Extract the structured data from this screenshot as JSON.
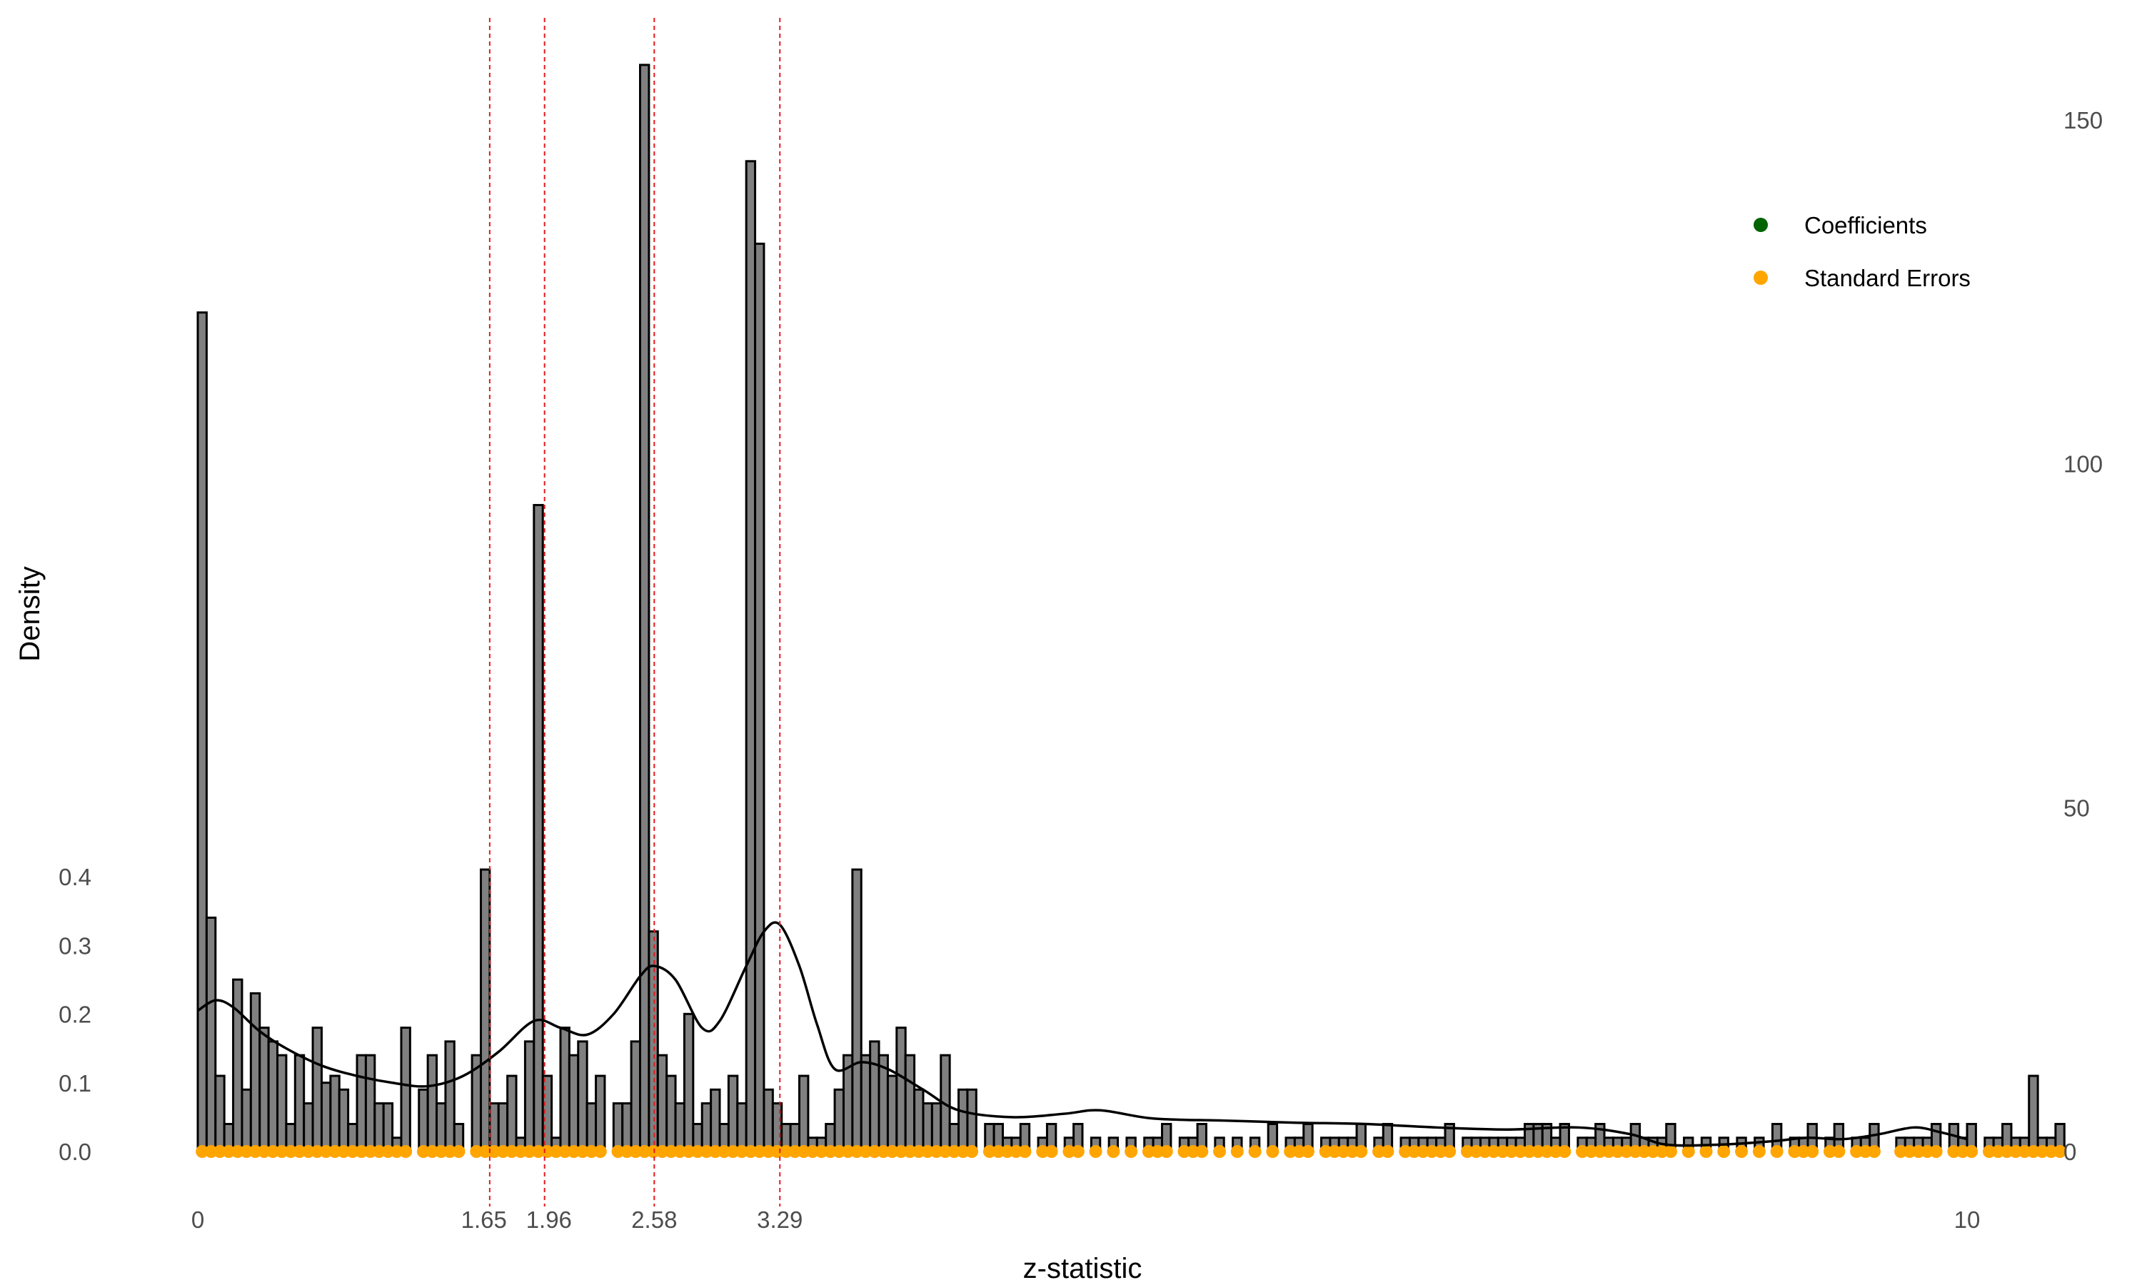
{
  "chart_data": {
    "type": "histogram",
    "xlabel": "z-statistic",
    "ylabel": "Density",
    "xlim": [
      0,
      10
    ],
    "ylim_left": [
      0,
      0.4
    ],
    "ylim_right": [
      0,
      150
    ],
    "x_ticks": [
      {
        "value": 0,
        "label": "0"
      },
      {
        "value": 1.65,
        "label": "1.65"
      },
      {
        "value": 1.96,
        "label": "1.96"
      },
      {
        "value": 2.58,
        "label": "2.58"
      },
      {
        "value": 3.29,
        "label": "3.29"
      },
      {
        "value": 10,
        "label": "10"
      }
    ],
    "y_left_ticks": [
      {
        "value": 0,
        "label": "0.0"
      },
      {
        "value": 0.1,
        "label": "0.1"
      },
      {
        "value": 0.2,
        "label": "0.2"
      },
      {
        "value": 0.3,
        "label": "0.3"
      },
      {
        "value": 0.4,
        "label": "0.4"
      }
    ],
    "y_right_ticks": [
      {
        "value": 0,
        "label": "0"
      },
      {
        "value": 50,
        "label": "50"
      },
      {
        "value": 100,
        "label": "100"
      },
      {
        "value": 150,
        "label": "150"
      }
    ],
    "critical_values": [
      1.65,
      1.96,
      2.58,
      3.29
    ],
    "bin_width": 0.05,
    "counts": [
      122,
      34,
      11,
      4,
      25,
      9,
      23,
      18,
      16,
      14,
      4,
      14,
      7,
      18,
      10,
      11,
      9,
      4,
      14,
      14,
      7,
      7,
      2,
      18,
      0,
      9,
      14,
      7,
      16,
      4,
      0,
      14,
      41,
      7,
      7,
      11,
      2,
      16,
      94,
      11,
      2,
      18,
      14,
      16,
      7,
      11,
      0,
      7,
      7,
      16,
      158,
      32,
      14,
      11,
      7,
      20,
      4,
      7,
      9,
      4,
      11,
      7,
      144,
      132,
      9,
      7,
      4,
      4,
      11,
      2,
      2,
      4,
      9,
      14,
      41,
      14,
      16,
      14,
      11,
      18,
      14,
      9,
      7,
      7,
      14,
      4,
      9,
      9,
      0,
      4,
      4,
      2,
      2,
      4,
      0,
      2,
      4,
      0,
      2,
      4,
      0,
      2,
      0,
      2,
      0,
      2,
      0,
      2,
      2,
      4,
      0,
      2,
      2,
      4,
      0,
      2,
      0,
      2,
      0,
      2,
      0,
      4,
      0,
      2,
      2,
      4,
      0,
      2,
      2,
      2,
      2,
      4,
      0,
      2,
      4,
      0,
      2,
      2,
      2,
      2,
      2,
      4,
      0,
      2,
      2,
      2,
      2,
      2,
      2,
      2,
      4,
      4,
      4,
      2,
      4,
      0,
      2,
      2,
      4,
      2,
      2,
      2,
      4,
      2,
      2,
      2,
      4,
      0,
      2,
      0,
      2,
      0,
      2,
      0,
      2,
      0,
      2,
      0,
      4,
      0,
      2,
      2,
      4,
      0,
      2,
      4,
      0,
      2,
      2,
      4,
      0,
      0,
      2,
      2,
      2,
      2,
      4,
      0,
      4,
      2,
      4,
      0,
      2,
      2,
      4,
      2,
      2,
      11,
      2,
      2,
      4
    ],
    "density_curve": {
      "x": [
        0,
        0.1,
        0.2,
        0.35,
        0.5,
        0.7,
        0.9,
        1.1,
        1.3,
        1.5,
        1.7,
        1.9,
        2.05,
        2.2,
        2.35,
        2.5,
        2.58,
        2.7,
        2.85,
        2.95,
        3.1,
        3.2,
        3.29,
        3.4,
        3.5,
        3.6,
        3.75,
        3.9,
        4.1,
        4.3,
        4.6,
        4.9,
        5.1,
        5.4,
        5.8,
        6.2,
        6.6,
        7.0,
        7.4,
        7.8,
        8.1,
        8.3,
        8.6,
        8.9,
        9.1,
        9.3,
        9.5,
        9.7,
        9.85,
        10
      ],
      "y": [
        0.205,
        0.22,
        0.21,
        0.175,
        0.15,
        0.125,
        0.11,
        0.1,
        0.095,
        0.11,
        0.145,
        0.19,
        0.18,
        0.17,
        0.2,
        0.255,
        0.27,
        0.25,
        0.18,
        0.19,
        0.27,
        0.32,
        0.33,
        0.27,
        0.185,
        0.12,
        0.13,
        0.12,
        0.09,
        0.06,
        0.05,
        0.055,
        0.06,
        0.048,
        0.045,
        0.042,
        0.04,
        0.035,
        0.032,
        0.035,
        0.025,
        0.01,
        0.01,
        0.015,
        0.02,
        0.018,
        0.025,
        0.035,
        0.028,
        0.018
      ]
    },
    "legend": {
      "position": "top-right",
      "entries": [
        {
          "label": "Coefficients",
          "color": "#006400"
        },
        {
          "label": "Standard Errors",
          "color": "#ffa500"
        }
      ]
    },
    "style": {
      "bar_fill": "#808080",
      "bar_stroke": "#000000",
      "critical_line_color": "#e31a1c",
      "curve_color": "#000000"
    }
  }
}
